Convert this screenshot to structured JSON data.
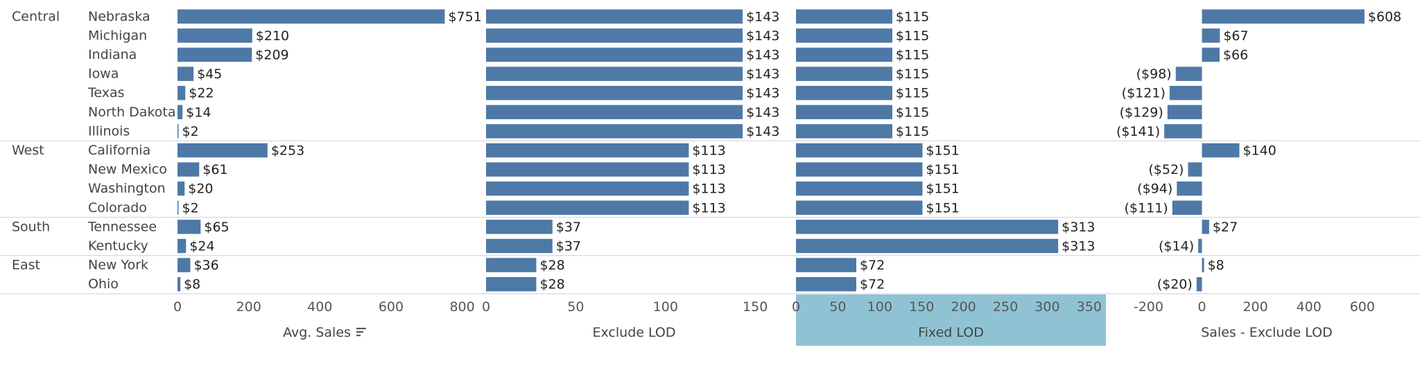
{
  "colors": {
    "bar": "#4e79a7",
    "selected_axis_bg": "#8fc3d4",
    "divider": "#cfcfcf"
  },
  "chart_data": {
    "type": "bar",
    "orientation": "horizontal",
    "regions": [
      {
        "name": "Central",
        "states": [
          "Nebraska",
          "Michigan",
          "Indiana",
          "Iowa",
          "Texas",
          "North Dakota",
          "Illinois"
        ]
      },
      {
        "name": "West",
        "states": [
          "California",
          "New Mexico",
          "Washington",
          "Colorado"
        ]
      },
      {
        "name": "South",
        "states": [
          "Tennessee",
          "Kentucky"
        ]
      },
      {
        "name": "East",
        "states": [
          "New York",
          "Ohio"
        ]
      }
    ],
    "series": [
      {
        "name": "Avg. Sales",
        "sort_icon": "sort-descending-icon",
        "values": [
          751,
          210,
          209,
          45,
          22,
          14,
          2,
          253,
          61,
          20,
          2,
          65,
          24,
          36,
          8
        ],
        "labels": [
          "$751",
          "$210",
          "$209",
          "$45",
          "$22",
          "$14",
          "$2",
          "$253",
          "$61",
          "$20",
          "$2",
          "$65",
          "$24",
          "$36",
          "$8"
        ],
        "xlim": [
          0,
          830
        ],
        "ticks": [
          0,
          200,
          400,
          600,
          800
        ],
        "tick_labels": [
          "0",
          "200",
          "400",
          "600",
          "800"
        ]
      },
      {
        "name": "Exclude LOD",
        "values": [
          143,
          143,
          143,
          143,
          143,
          143,
          143,
          113,
          113,
          113,
          113,
          37,
          37,
          28,
          28
        ],
        "labels": [
          "$143",
          "$143",
          "$143",
          "$143",
          "$143",
          "$143",
          "$143",
          "$113",
          "$113",
          "$113",
          "$113",
          "$37",
          "$37",
          "$28",
          "$28"
        ],
        "xlim": [
          0,
          165
        ],
        "ticks": [
          0,
          50,
          100,
          150
        ],
        "tick_labels": [
          "0",
          "50",
          "100",
          "150"
        ]
      },
      {
        "name": "Fixed LOD",
        "selected": true,
        "values": [
          115,
          115,
          115,
          115,
          115,
          115,
          115,
          151,
          151,
          151,
          151,
          313,
          313,
          72,
          72
        ],
        "labels": [
          "$115",
          "$115",
          "$115",
          "$115",
          "$115",
          "$115",
          "$115",
          "$151",
          "$151",
          "$151",
          "$151",
          "$313",
          "$313",
          "$72",
          "$72"
        ],
        "xlim": [
          0,
          370
        ],
        "ticks": [
          0,
          50,
          100,
          150,
          200,
          250,
          300,
          350
        ],
        "tick_labels": [
          "0",
          "50",
          "100",
          "150",
          "200",
          "250",
          "300",
          "350"
        ]
      },
      {
        "name": "Sales - Exclude LOD",
        "values": [
          608,
          67,
          66,
          -98,
          -121,
          -129,
          -141,
          140,
          -52,
          -94,
          -111,
          27,
          -14,
          8,
          -20
        ],
        "labels": [
          "$608",
          "$67",
          "$66",
          "($98)",
          "($121)",
          "($129)",
          "($141)",
          "$140",
          "($52)",
          "($94)",
          "($111)",
          "$27",
          "($14)",
          "$8",
          "($20)"
        ],
        "xlim": [
          -310,
          795
        ],
        "ticks": [
          -200,
          0,
          200,
          400,
          600
        ],
        "tick_labels": [
          "-200",
          "0",
          "200",
          "400",
          "600"
        ]
      }
    ],
    "grid": false,
    "legend": "none"
  }
}
